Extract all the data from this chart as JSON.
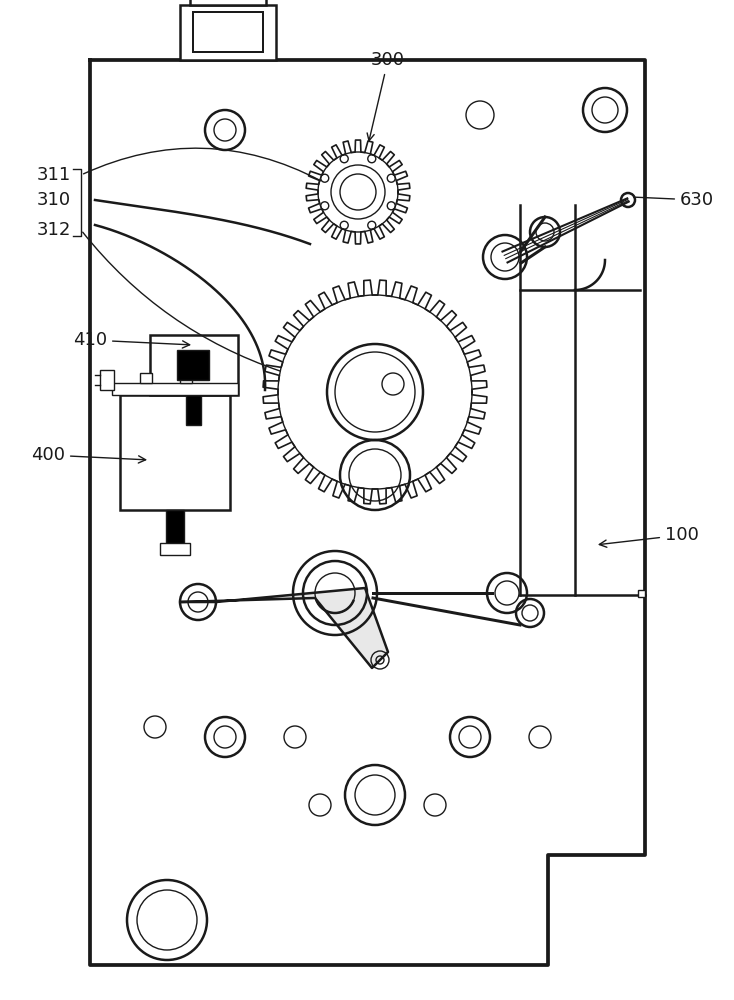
{
  "bg_color": "#ffffff",
  "line_color": "#1a1a1a",
  "lw": 1.8,
  "tlw": 1.0,
  "fs": 13
}
